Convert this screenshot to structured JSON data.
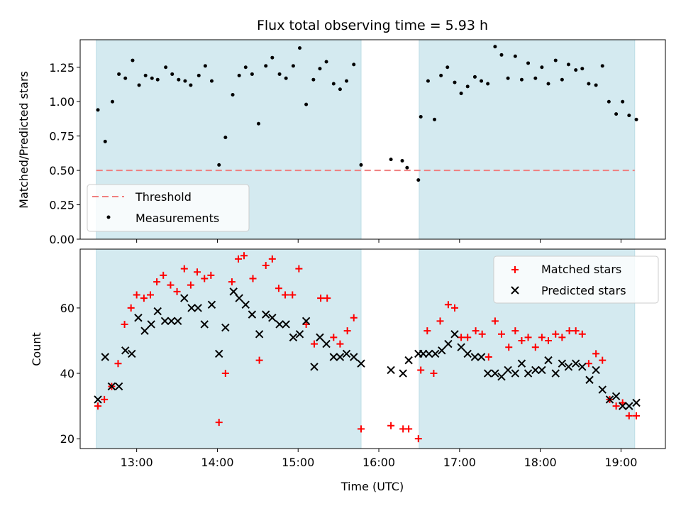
{
  "title": "Flux total observing time = 5.93 h",
  "chart_data": [
    {
      "type": "scatter",
      "ylabel": "Matched/Predicted stars",
      "xlim": [
        12.3,
        19.55
      ],
      "ylim": [
        0.0,
        1.45
      ],
      "yticks": [
        0.0,
        0.25,
        0.5,
        0.75,
        1.0,
        1.25
      ],
      "ytick_labels": [
        "0.00",
        "0.25",
        "0.50",
        "0.75",
        "1.00",
        "1.25"
      ],
      "shaded_intervals": [
        [
          12.5,
          15.78
        ],
        [
          16.5,
          19.17
        ]
      ],
      "shade_color": "#d4eaf0",
      "threshold": {
        "name": "Threshold",
        "value": 0.5,
        "color": "#f07f7f"
      },
      "legend_position": "lower-left",
      "series": [
        {
          "name": "Measurements",
          "color": "#000000",
          "marker": "dot",
          "points": [
            [
              12.52,
              0.94
            ],
            [
              12.61,
              0.71
            ],
            [
              12.7,
              1.0
            ],
            [
              12.78,
              1.2
            ],
            [
              12.86,
              1.17
            ],
            [
              12.95,
              1.3
            ],
            [
              13.03,
              1.12
            ],
            [
              13.11,
              1.19
            ],
            [
              13.19,
              1.17
            ],
            [
              13.26,
              1.16
            ],
            [
              13.36,
              1.25
            ],
            [
              13.44,
              1.2
            ],
            [
              13.52,
              1.16
            ],
            [
              13.6,
              1.15
            ],
            [
              13.67,
              1.12
            ],
            [
              13.77,
              1.19
            ],
            [
              13.85,
              1.26
            ],
            [
              13.93,
              1.15
            ],
            [
              14.02,
              0.54
            ],
            [
              14.1,
              0.74
            ],
            [
              14.19,
              1.05
            ],
            [
              14.27,
              1.19
            ],
            [
              14.35,
              1.25
            ],
            [
              14.43,
              1.2
            ],
            [
              14.51,
              0.84
            ],
            [
              14.6,
              1.26
            ],
            [
              14.68,
              1.32
            ],
            [
              14.77,
              1.2
            ],
            [
              14.85,
              1.17
            ],
            [
              14.94,
              1.26
            ],
            [
              15.02,
              1.39
            ],
            [
              15.1,
              0.98
            ],
            [
              15.19,
              1.16
            ],
            [
              15.27,
              1.24
            ],
            [
              15.35,
              1.29
            ],
            [
              15.44,
              1.13
            ],
            [
              15.52,
              1.09
            ],
            [
              15.6,
              1.15
            ],
            [
              15.69,
              1.27
            ],
            [
              15.78,
              0.54
            ],
            [
              16.15,
              0.58
            ],
            [
              16.29,
              0.57
            ],
            [
              16.35,
              0.52
            ],
            [
              16.49,
              0.43
            ],
            [
              16.52,
              0.89
            ],
            [
              16.61,
              1.15
            ],
            [
              16.69,
              0.87
            ],
            [
              16.77,
              1.19
            ],
            [
              16.85,
              1.25
            ],
            [
              16.94,
              1.14
            ],
            [
              17.02,
              1.06
            ],
            [
              17.1,
              1.11
            ],
            [
              17.19,
              1.18
            ],
            [
              17.27,
              1.15
            ],
            [
              17.35,
              1.13
            ],
            [
              17.44,
              1.4
            ],
            [
              17.52,
              1.34
            ],
            [
              17.6,
              1.17
            ],
            [
              17.69,
              1.33
            ],
            [
              17.77,
              1.16
            ],
            [
              17.85,
              1.28
            ],
            [
              17.94,
              1.17
            ],
            [
              18.02,
              1.25
            ],
            [
              18.1,
              1.13
            ],
            [
              18.19,
              1.3
            ],
            [
              18.27,
              1.16
            ],
            [
              18.35,
              1.27
            ],
            [
              18.44,
              1.23
            ],
            [
              18.52,
              1.24
            ],
            [
              18.6,
              1.13
            ],
            [
              18.69,
              1.12
            ],
            [
              18.77,
              1.26
            ],
            [
              18.85,
              1.0
            ],
            [
              18.94,
              0.91
            ],
            [
              19.02,
              1.0
            ],
            [
              19.1,
              0.9
            ],
            [
              19.19,
              0.87
            ]
          ]
        }
      ]
    },
    {
      "type": "scatter",
      "xlabel": "Time (UTC)",
      "ylabel": "Count",
      "xlim": [
        12.3,
        19.55
      ],
      "ylim": [
        17,
        78
      ],
      "xticks": [
        13,
        14,
        15,
        16,
        17,
        18,
        19
      ],
      "xtick_labels": [
        "13:00",
        "14:00",
        "15:00",
        "16:00",
        "17:00",
        "18:00",
        "19:00"
      ],
      "yticks": [
        20,
        40,
        60
      ],
      "ytick_labels": [
        "20",
        "40",
        "60"
      ],
      "shaded_intervals": [
        [
          12.5,
          15.78
        ],
        [
          16.5,
          19.17
        ]
      ],
      "shade_color": "#d4eaf0",
      "legend_position": "upper-right",
      "series": [
        {
          "name": "Matched stars",
          "color": "#ff0000",
          "marker": "plus",
          "points": [
            [
              12.52,
              30
            ],
            [
              12.6,
              32
            ],
            [
              12.69,
              36
            ],
            [
              12.77,
              43
            ],
            [
              12.85,
              55
            ],
            [
              12.93,
              60
            ],
            [
              13.0,
              64
            ],
            [
              13.09,
              63
            ],
            [
              13.17,
              64
            ],
            [
              13.25,
              68
            ],
            [
              13.33,
              70
            ],
            [
              13.42,
              67
            ],
            [
              13.5,
              65
            ],
            [
              13.59,
              72
            ],
            [
              13.67,
              67
            ],
            [
              13.75,
              71
            ],
            [
              13.84,
              69
            ],
            [
              13.92,
              70
            ],
            [
              14.02,
              25
            ],
            [
              14.1,
              40
            ],
            [
              14.18,
              68
            ],
            [
              14.26,
              75
            ],
            [
              14.33,
              76
            ],
            [
              14.44,
              69
            ],
            [
              14.52,
              44
            ],
            [
              14.6,
              73
            ],
            [
              14.68,
              75
            ],
            [
              14.76,
              66
            ],
            [
              14.84,
              64
            ],
            [
              14.93,
              64
            ],
            [
              15.01,
              72
            ],
            [
              15.1,
              55
            ],
            [
              15.2,
              49
            ],
            [
              15.28,
              63
            ],
            [
              15.36,
              63
            ],
            [
              15.44,
              51
            ],
            [
              15.52,
              49
            ],
            [
              15.61,
              53
            ],
            [
              15.69,
              57
            ],
            [
              15.78,
              23
            ],
            [
              16.15,
              24
            ],
            [
              16.3,
              23
            ],
            [
              16.37,
              23
            ],
            [
              16.49,
              20
            ],
            [
              16.52,
              41
            ],
            [
              16.6,
              53
            ],
            [
              16.68,
              40
            ],
            [
              16.76,
              56
            ],
            [
              16.86,
              61
            ],
            [
              16.94,
              60
            ],
            [
              17.02,
              51
            ],
            [
              17.1,
              51
            ],
            [
              17.2,
              53
            ],
            [
              17.28,
              52
            ],
            [
              17.36,
              45
            ],
            [
              17.44,
              56
            ],
            [
              17.52,
              52
            ],
            [
              17.61,
              48
            ],
            [
              17.69,
              53
            ],
            [
              17.77,
              50
            ],
            [
              17.85,
              51
            ],
            [
              17.94,
              48
            ],
            [
              18.02,
              51
            ],
            [
              18.1,
              50
            ],
            [
              18.19,
              52
            ],
            [
              18.27,
              51
            ],
            [
              18.36,
              53
            ],
            [
              18.44,
              53
            ],
            [
              18.52,
              52
            ],
            [
              18.6,
              43
            ],
            [
              18.69,
              46
            ],
            [
              18.77,
              44
            ],
            [
              18.86,
              32
            ],
            [
              18.94,
              30
            ],
            [
              19.02,
              31
            ],
            [
              19.1,
              27
            ],
            [
              19.19,
              27
            ]
          ]
        },
        {
          "name": "Predicted stars",
          "color": "#000000",
          "marker": "x",
          "points": [
            [
              12.52,
              32
            ],
            [
              12.61,
              45
            ],
            [
              12.69,
              36
            ],
            [
              12.78,
              36
            ],
            [
              12.86,
              47
            ],
            [
              12.94,
              46
            ],
            [
              13.02,
              57
            ],
            [
              13.1,
              53
            ],
            [
              13.18,
              55
            ],
            [
              13.26,
              59
            ],
            [
              13.35,
              56
            ],
            [
              13.43,
              56
            ],
            [
              13.51,
              56
            ],
            [
              13.59,
              63
            ],
            [
              13.68,
              60
            ],
            [
              13.76,
              60
            ],
            [
              13.84,
              55
            ],
            [
              13.93,
              61
            ],
            [
              14.02,
              46
            ],
            [
              14.1,
              54
            ],
            [
              14.2,
              65
            ],
            [
              14.27,
              63
            ],
            [
              14.35,
              61
            ],
            [
              14.43,
              58
            ],
            [
              14.52,
              52
            ],
            [
              14.6,
              58
            ],
            [
              14.68,
              57
            ],
            [
              14.77,
              55
            ],
            [
              14.85,
              55
            ],
            [
              14.94,
              51
            ],
            [
              15.02,
              52
            ],
            [
              15.1,
              56
            ],
            [
              15.2,
              42
            ],
            [
              15.27,
              51
            ],
            [
              15.35,
              49
            ],
            [
              15.44,
              45
            ],
            [
              15.52,
              45
            ],
            [
              15.6,
              46
            ],
            [
              15.69,
              45
            ],
            [
              15.78,
              43
            ],
            [
              16.15,
              41
            ],
            [
              16.3,
              40
            ],
            [
              16.37,
              44
            ],
            [
              16.49,
              46
            ],
            [
              16.55,
              46
            ],
            [
              16.62,
              46
            ],
            [
              16.7,
              46
            ],
            [
              16.78,
              47
            ],
            [
              16.86,
              49
            ],
            [
              16.94,
              52
            ],
            [
              17.02,
              48
            ],
            [
              17.1,
              46
            ],
            [
              17.19,
              45
            ],
            [
              17.27,
              45
            ],
            [
              17.35,
              40
            ],
            [
              17.44,
              40
            ],
            [
              17.52,
              39
            ],
            [
              17.6,
              41
            ],
            [
              17.69,
              40
            ],
            [
              17.77,
              43
            ],
            [
              17.85,
              40
            ],
            [
              17.94,
              41
            ],
            [
              18.02,
              41
            ],
            [
              18.1,
              44
            ],
            [
              18.19,
              40
            ],
            [
              18.27,
              43
            ],
            [
              18.35,
              42
            ],
            [
              18.44,
              43
            ],
            [
              18.52,
              42
            ],
            [
              18.61,
              38
            ],
            [
              18.69,
              41
            ],
            [
              18.77,
              35
            ],
            [
              18.86,
              32
            ],
            [
              18.94,
              33
            ],
            [
              19.02,
              30
            ],
            [
              19.1,
              30
            ],
            [
              19.19,
              31
            ]
          ]
        }
      ]
    }
  ]
}
